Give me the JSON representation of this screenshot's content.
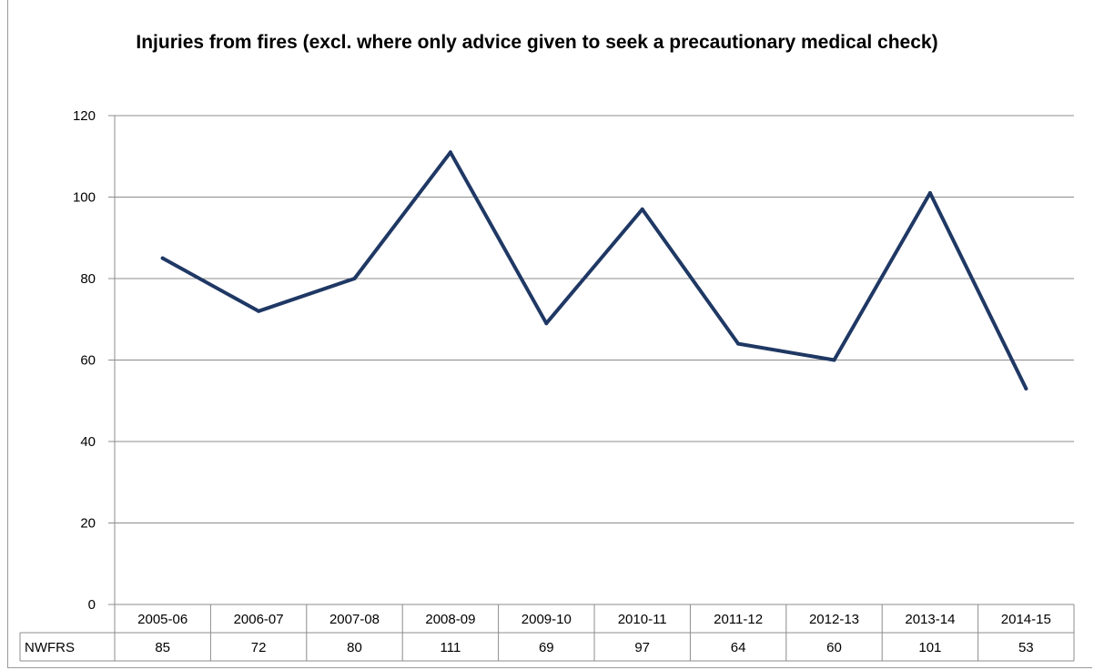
{
  "chart_data": {
    "type": "line",
    "title": "Injuries from fires (excl. where only advice given to seek a precautionary  medical check)",
    "categories": [
      "2005-06",
      "2006-07",
      "2007-08",
      "2008-09",
      "2009-10",
      "2010-11",
      "2011-12",
      "2012-13",
      "2013-14",
      "2014-15"
    ],
    "series": [
      {
        "name": "NWFRS",
        "values": [
          85,
          72,
          80,
          111,
          69,
          97,
          64,
          60,
          101,
          53
        ],
        "color": "#1f3864"
      }
    ],
    "table_values": [
      "85",
      "72",
      "80",
      "111",
      "69",
      "97",
      "64",
      "60",
      "101",
      "53"
    ],
    "yticks": [
      "0",
      "20",
      "40",
      "60",
      "80",
      "100",
      "120"
    ],
    "ylim": [
      0,
      120
    ],
    "grid": true,
    "legend": "data table below x-axis",
    "xlabel": "",
    "ylabel": ""
  }
}
